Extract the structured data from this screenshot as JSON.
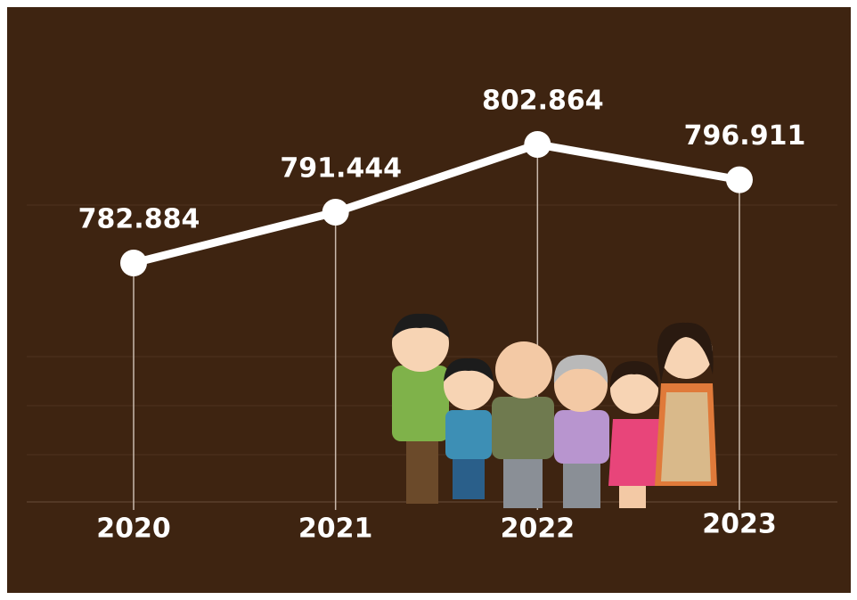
{
  "chart_data": {
    "type": "line",
    "categories": [
      "2020",
      "2021",
      "2022",
      "2023"
    ],
    "series": [
      {
        "color": "#ffffff",
        "values": [
          782.884,
          791.444,
          802.864,
          796.911
        ]
      }
    ]
  }
}
